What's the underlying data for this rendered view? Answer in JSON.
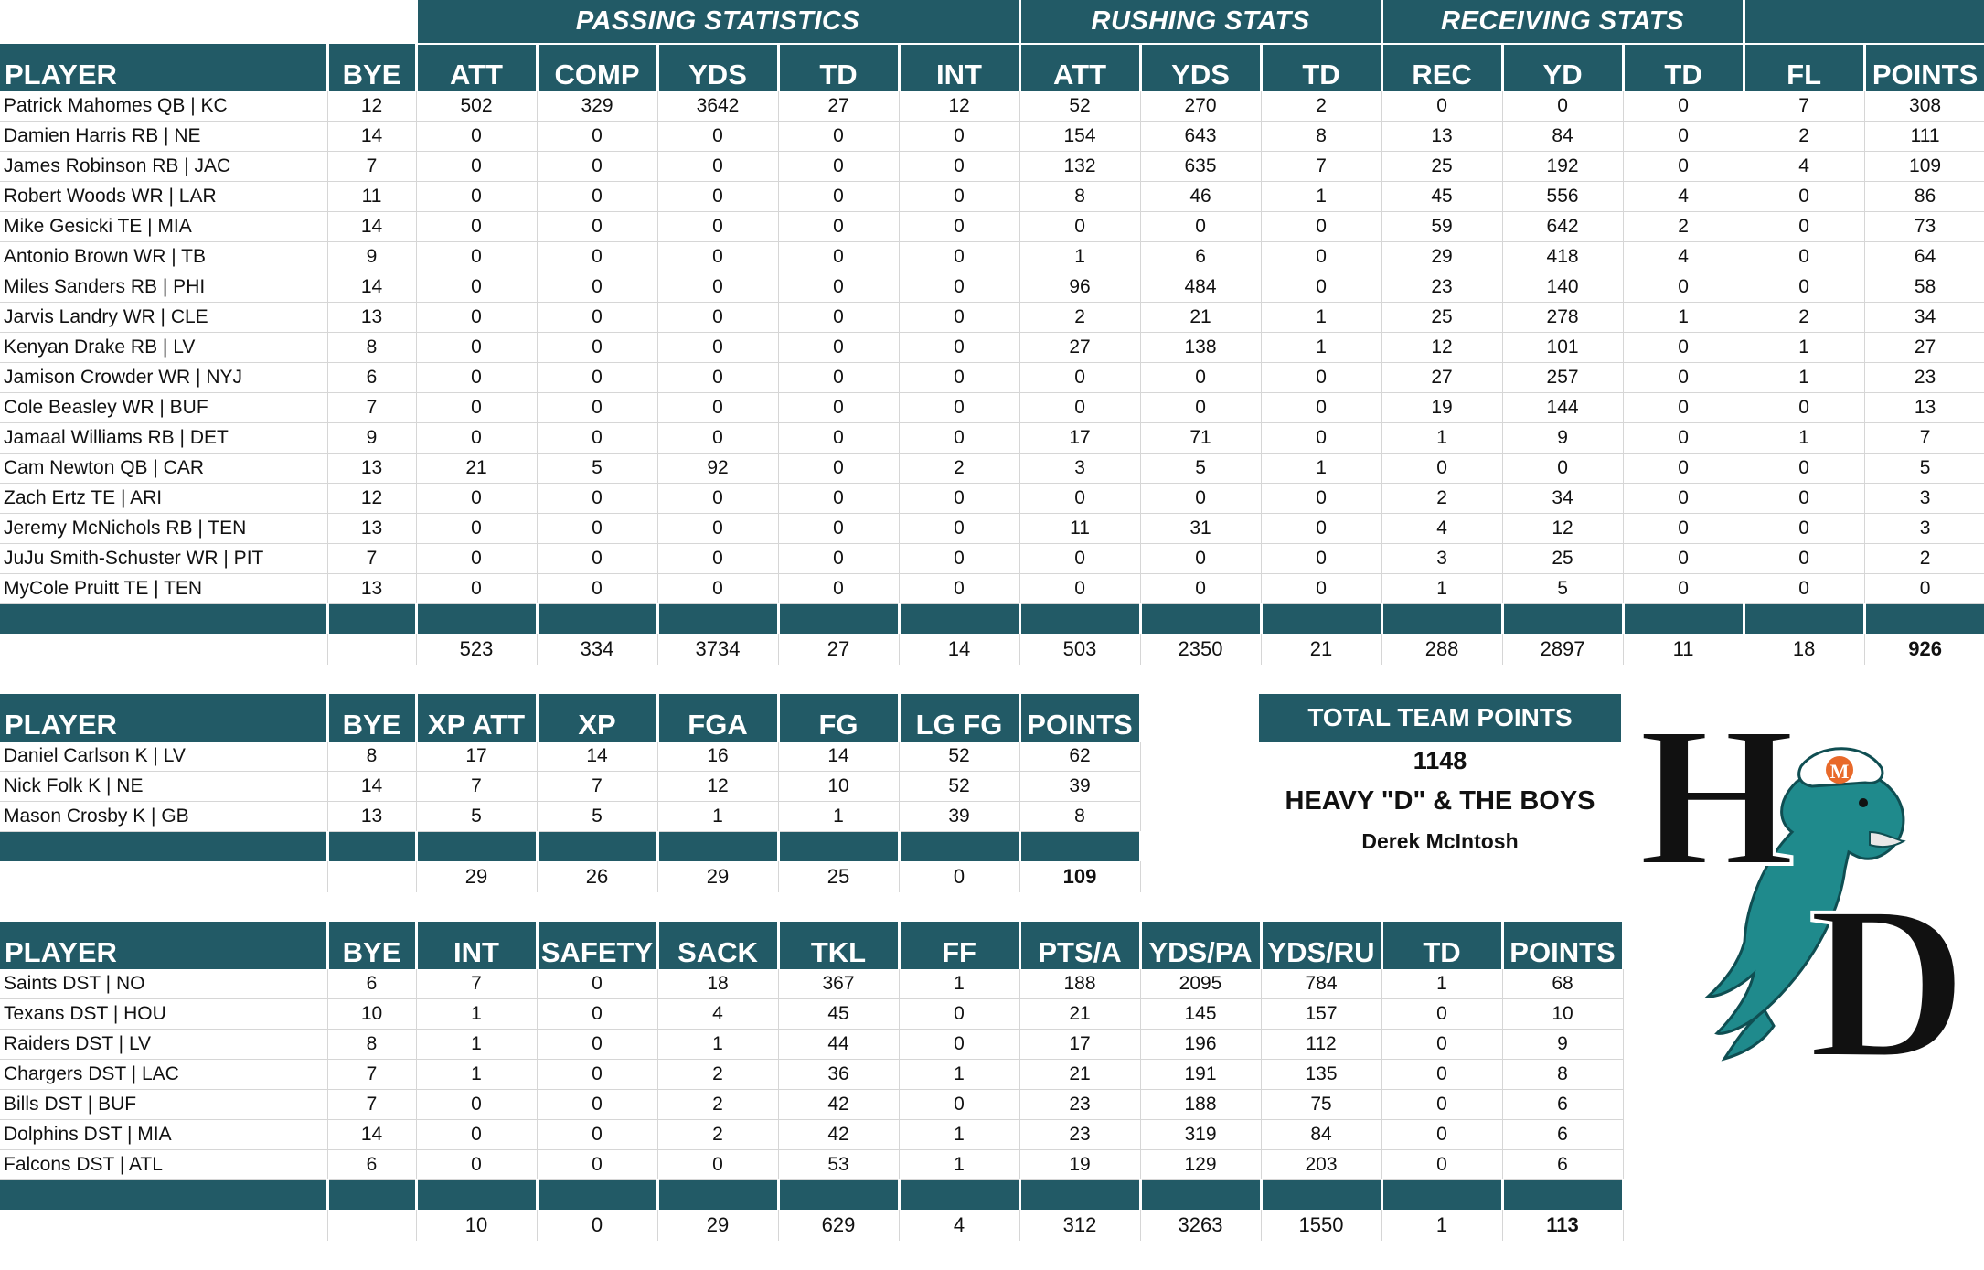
{
  "offense": {
    "groups": {
      "passing": "PASSING STATISTICS",
      "rushing": "RUSHING STATS",
      "receiving": "RECEIVING STATS"
    },
    "headers": [
      "PLAYER",
      "BYE",
      "ATT",
      "COMP",
      "YDS",
      "TD",
      "INT",
      "ATT",
      "YDS",
      "TD",
      "REC",
      "YD",
      "TD",
      "FL",
      "POINTS"
    ],
    "rows": [
      [
        "Patrick Mahomes QB | KC",
        "12",
        "502",
        "329",
        "3642",
        "27",
        "12",
        "52",
        "270",
        "2",
        "0",
        "0",
        "0",
        "7",
        "308"
      ],
      [
        "Damien Harris RB | NE",
        "14",
        "0",
        "0",
        "0",
        "0",
        "0",
        "154",
        "643",
        "8",
        "13",
        "84",
        "0",
        "2",
        "111"
      ],
      [
        "James Robinson RB | JAC",
        "7",
        "0",
        "0",
        "0",
        "0",
        "0",
        "132",
        "635",
        "7",
        "25",
        "192",
        "0",
        "4",
        "109"
      ],
      [
        "Robert Woods WR | LAR",
        "11",
        "0",
        "0",
        "0",
        "0",
        "0",
        "8",
        "46",
        "1",
        "45",
        "556",
        "4",
        "0",
        "86"
      ],
      [
        "Mike Gesicki TE | MIA",
        "14",
        "0",
        "0",
        "0",
        "0",
        "0",
        "0",
        "0",
        "0",
        "59",
        "642",
        "2",
        "0",
        "73"
      ],
      [
        "Antonio Brown WR | TB",
        "9",
        "0",
        "0",
        "0",
        "0",
        "0",
        "1",
        "6",
        "0",
        "29",
        "418",
        "4",
        "0",
        "64"
      ],
      [
        "Miles Sanders RB | PHI",
        "14",
        "0",
        "0",
        "0",
        "0",
        "0",
        "96",
        "484",
        "0",
        "23",
        "140",
        "0",
        "0",
        "58"
      ],
      [
        "Jarvis Landry WR | CLE",
        "13",
        "0",
        "0",
        "0",
        "0",
        "0",
        "2",
        "21",
        "1",
        "25",
        "278",
        "1",
        "2",
        "34"
      ],
      [
        "Kenyan Drake RB | LV",
        "8",
        "0",
        "0",
        "0",
        "0",
        "0",
        "27",
        "138",
        "1",
        "12",
        "101",
        "0",
        "1",
        "27"
      ],
      [
        "Jamison Crowder WR | NYJ",
        "6",
        "0",
        "0",
        "0",
        "0",
        "0",
        "0",
        "0",
        "0",
        "27",
        "257",
        "0",
        "1",
        "23"
      ],
      [
        "Cole Beasley WR | BUF",
        "7",
        "0",
        "0",
        "0",
        "0",
        "0",
        "0",
        "0",
        "0",
        "19",
        "144",
        "0",
        "0",
        "13"
      ],
      [
        "Jamaal Williams RB | DET",
        "9",
        "0",
        "0",
        "0",
        "0",
        "0",
        "17",
        "71",
        "0",
        "1",
        "9",
        "0",
        "1",
        "7"
      ],
      [
        "Cam Newton QB | CAR",
        "13",
        "21",
        "5",
        "92",
        "0",
        "2",
        "3",
        "5",
        "1",
        "0",
        "0",
        "0",
        "0",
        "5"
      ],
      [
        "Zach Ertz TE | ARI",
        "12",
        "0",
        "0",
        "0",
        "0",
        "0",
        "0",
        "0",
        "0",
        "2",
        "34",
        "0",
        "0",
        "3"
      ],
      [
        "Jeremy McNichols RB | TEN",
        "13",
        "0",
        "0",
        "0",
        "0",
        "0",
        "11",
        "31",
        "0",
        "4",
        "12",
        "0",
        "0",
        "3"
      ],
      [
        "JuJu Smith-Schuster WR | PIT",
        "7",
        "0",
        "0",
        "0",
        "0",
        "0",
        "0",
        "0",
        "0",
        "3",
        "25",
        "0",
        "0",
        "2"
      ],
      [
        "MyCole Pruitt TE | TEN",
        "13",
        "0",
        "0",
        "0",
        "0",
        "0",
        "0",
        "0",
        "0",
        "1",
        "5",
        "0",
        "0",
        "0"
      ]
    ],
    "totals": [
      "",
      "",
      "523",
      "334",
      "3734",
      "27",
      "14",
      "503",
      "2350",
      "21",
      "288",
      "2897",
      "11",
      "18",
      "926"
    ]
  },
  "kicking": {
    "headers": [
      "PLAYER",
      "BYE",
      "XP ATT",
      "XP",
      "FGA",
      "FG",
      "LG FG",
      "POINTS"
    ],
    "rows": [
      [
        "Daniel Carlson K | LV",
        "8",
        "17",
        "14",
        "16",
        "14",
        "52",
        "62"
      ],
      [
        "Nick Folk K | NE",
        "14",
        "7",
        "7",
        "12",
        "10",
        "52",
        "39"
      ],
      [
        "Mason Crosby K | GB",
        "13",
        "5",
        "5",
        "1",
        "1",
        "39",
        "8"
      ]
    ],
    "totals": [
      "",
      "",
      "29",
      "26",
      "29",
      "25",
      "0",
      "109"
    ]
  },
  "defense": {
    "headers": [
      "PLAYER",
      "BYE",
      "INT",
      "SAFETY",
      "SACK",
      "TKL",
      "FF",
      "PTS/A",
      "YDS/PA",
      "YDS/RU",
      "TD",
      "POINTS"
    ],
    "rows": [
      [
        "Saints DST | NO",
        "6",
        "7",
        "0",
        "18",
        "367",
        "1",
        "188",
        "2095",
        "784",
        "1",
        "68"
      ],
      [
        "Texans DST | HOU",
        "10",
        "1",
        "0",
        "4",
        "45",
        "0",
        "21",
        "145",
        "157",
        "0",
        "10"
      ],
      [
        "Raiders DST | LV",
        "8",
        "1",
        "0",
        "1",
        "44",
        "0",
        "17",
        "196",
        "112",
        "0",
        "9"
      ],
      [
        "Chargers DST | LAC",
        "7",
        "1",
        "0",
        "2",
        "36",
        "1",
        "21",
        "191",
        "135",
        "0",
        "8"
      ],
      [
        "Bills DST | BUF",
        "7",
        "0",
        "0",
        "2",
        "42",
        "0",
        "23",
        "188",
        "75",
        "0",
        "6"
      ],
      [
        "Dolphins DST | MIA",
        "14",
        "0",
        "0",
        "2",
        "42",
        "1",
        "23",
        "319",
        "84",
        "0",
        "6"
      ],
      [
        "Falcons DST | ATL",
        "6",
        "0",
        "0",
        "0",
        "53",
        "1",
        "19",
        "129",
        "203",
        "0",
        "6"
      ]
    ],
    "totals": [
      "",
      "",
      "10",
      "0",
      "29",
      "629",
      "4",
      "312",
      "3263",
      "1550",
      "1",
      "113"
    ]
  },
  "team": {
    "label": "TOTAL TEAM POINTS",
    "points": "1148",
    "name": "HEAVY \"D\" & THE BOYS",
    "owner": "Derek McIntosh"
  },
  "logo": {
    "letters": [
      "H",
      "D"
    ],
    "helmet_letter": "M"
  },
  "colors": {
    "header": "#225a66",
    "dolphin": "#1f8a8c",
    "helmet_orange": "#e8692a"
  }
}
